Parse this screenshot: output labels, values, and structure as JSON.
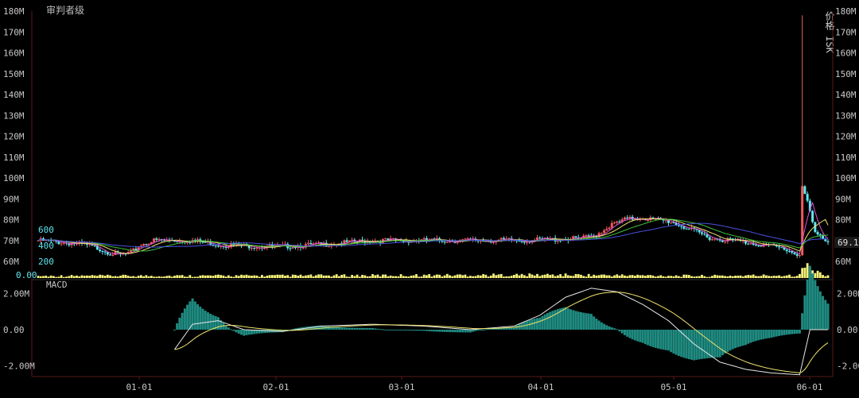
{
  "title": "审判者级",
  "right_axis_label": "价格 ISK",
  "last_price_label": "69.1",
  "macd_label": "MACD",
  "colors": {
    "up": "#f05a5a",
    "down": "#5fe6f0",
    "volume": "#f7f27a",
    "macd_hist": "#1f8a80",
    "ma_fast": "#e052d8",
    "ma_mid": "#f0e46a",
    "ma_slow": "#3fbf3f",
    "ma_long": "#4a52e0"
  },
  "chart_data": {
    "type": "candlestick",
    "price_axis": {
      "ticks": [
        "60M",
        "70M",
        "80M",
        "90M",
        "100M",
        "110M",
        "120M",
        "130M",
        "140M",
        "150M",
        "160M",
        "170M",
        "180M"
      ],
      "ylim": [
        52,
        180
      ]
    },
    "volume_axis": {
      "ticks": [
        "0.00",
        "200",
        "400",
        "600"
      ]
    },
    "macd_axis": {
      "ticks": [
        "-2.00M",
        "0.00",
        "2.00M"
      ],
      "ylim": [
        -2.6,
        2.6
      ]
    },
    "x_ticks": [
      "01-01",
      "02-01",
      "03-01",
      "04-01",
      "05-01",
      "06-01"
    ],
    "price_keypoints": [
      [
        0,
        70
      ],
      [
        10,
        69
      ],
      [
        18,
        68
      ],
      [
        24,
        66
      ],
      [
        28,
        64
      ],
      [
        32,
        63
      ],
      [
        36,
        64
      ],
      [
        40,
        68
      ],
      [
        45,
        70
      ],
      [
        60,
        70
      ],
      [
        70,
        68
      ],
      [
        90,
        67
      ],
      [
        110,
        68
      ],
      [
        130,
        70
      ],
      [
        150,
        70
      ],
      [
        170,
        70
      ],
      [
        190,
        70
      ],
      [
        210,
        71
      ],
      [
        216,
        72
      ],
      [
        222,
        77
      ],
      [
        228,
        80
      ],
      [
        234,
        81
      ],
      [
        240,
        80
      ],
      [
        246,
        79
      ],
      [
        252,
        76
      ],
      [
        258,
        73
      ],
      [
        262,
        71
      ],
      [
        270,
        70
      ],
      [
        282,
        68
      ],
      [
        290,
        66
      ],
      [
        296,
        63
      ],
      [
        297,
        96
      ],
      [
        300,
        84
      ],
      [
        302,
        73
      ],
      [
        307,
        70
      ]
    ],
    "volume_keypoints": [
      [
        0,
        80
      ],
      [
        100,
        90
      ],
      [
        200,
        120
      ],
      [
        260,
        80
      ],
      [
        296,
        110
      ],
      [
        297,
        600
      ],
      [
        300,
        300
      ],
      [
        307,
        100
      ]
    ],
    "macd_keypoints": [
      [
        0,
        null
      ],
      [
        52,
        -1.3
      ],
      [
        60,
        0.3
      ],
      [
        70,
        0.5
      ],
      [
        80,
        0.0
      ],
      [
        95,
        -0.1
      ],
      [
        110,
        0.2
      ],
      [
        130,
        0.3
      ],
      [
        150,
        0.2
      ],
      [
        168,
        0.0
      ],
      [
        185,
        0.2
      ],
      [
        195,
        0.8
      ],
      [
        205,
        1.8
      ],
      [
        215,
        2.3
      ],
      [
        225,
        2.1
      ],
      [
        235,
        1.4
      ],
      [
        245,
        0.5
      ],
      [
        255,
        -0.8
      ],
      [
        265,
        -1.8
      ],
      [
        275,
        -2.2
      ],
      [
        285,
        -2.4
      ],
      [
        296,
        -2.5
      ],
      [
        300,
        0.0
      ],
      [
        307,
        0.0
      ]
    ]
  }
}
